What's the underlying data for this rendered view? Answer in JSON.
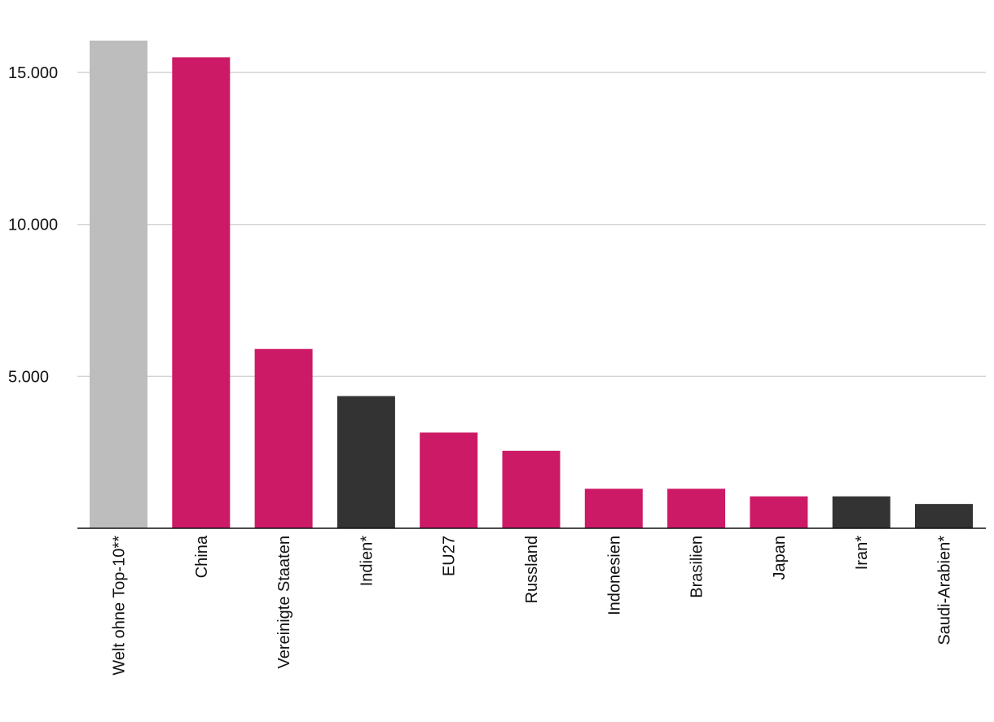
{
  "chart_data": {
    "type": "bar",
    "title": "",
    "xlabel": "",
    "ylabel": "",
    "categories": [
      "Welt ohne Top-10**",
      "China",
      "Vereinigte Staaten",
      "Indien*",
      "EU27",
      "Russland",
      "Indonesien",
      "Brasilien",
      "Japan",
      "Iran*",
      "Saudi-Arabien*"
    ],
    "values": [
      16050,
      15500,
      5900,
      4350,
      3150,
      2550,
      1300,
      1300,
      1050,
      1050,
      800
    ],
    "colors": [
      "#bdbdbd",
      "#cc1a66",
      "#cc1a66",
      "#333333",
      "#cc1a66",
      "#cc1a66",
      "#cc1a66",
      "#cc1a66",
      "#cc1a66",
      "#333333",
      "#333333"
    ],
    "ylim": [
      0,
      16500
    ],
    "yticks": [
      5000,
      10000,
      15000
    ],
    "ytick_labels": [
      "5.000",
      "10.000",
      "15.000"
    ],
    "grid": true,
    "legend": "none"
  }
}
